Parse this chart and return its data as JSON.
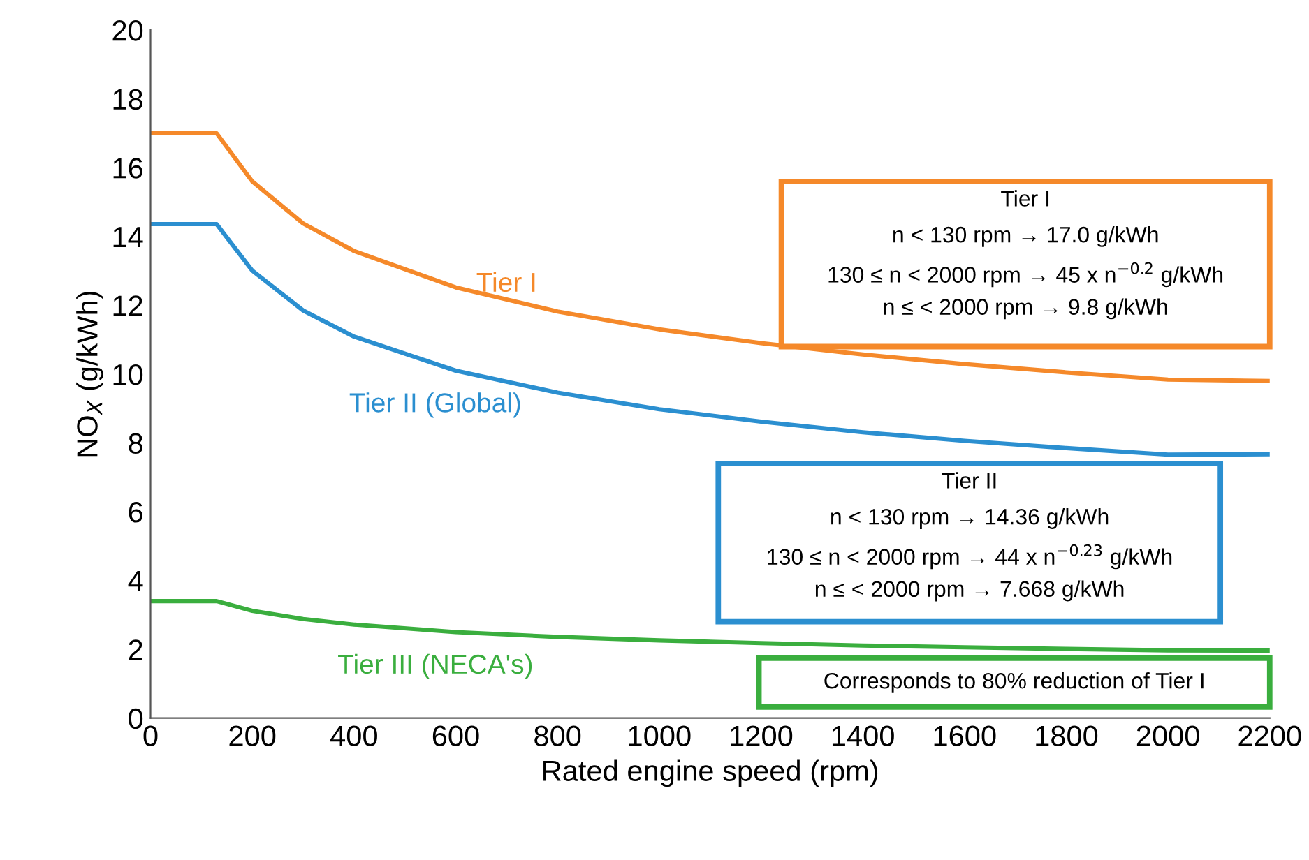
{
  "chart_data": {
    "type": "line",
    "xlabel": "Rated engine speed (rpm)",
    "ylabel": "NO$_{X}$ (g/kWh)",
    "x": [
      0,
      130,
      200,
      300,
      400,
      600,
      800,
      1000,
      1200,
      1400,
      1600,
      1800,
      2000,
      2200
    ],
    "series": [
      {
        "name": "Tier I",
        "color": "#f5892a",
        "values": [
          17.0,
          17.0,
          15.6,
          14.38,
          13.58,
          12.52,
          11.82,
          11.3,
          10.9,
          10.57,
          10.29,
          10.05,
          9.84,
          9.8
        ]
      },
      {
        "name": "Tier II (Global)",
        "color": "#2b8fd0",
        "values": [
          14.36,
          14.36,
          13.01,
          11.85,
          11.09,
          10.1,
          9.46,
          8.98,
          8.62,
          8.31,
          8.06,
          7.85,
          7.66,
          7.67
        ]
      },
      {
        "name": "Tier III (NECA's)",
        "color": "#3aae3e",
        "values": [
          3.4,
          3.4,
          3.12,
          2.88,
          2.72,
          2.5,
          2.36,
          2.26,
          2.18,
          2.11,
          2.06,
          2.01,
          1.97,
          1.96
        ]
      }
    ],
    "annotations": [
      "Tier I",
      "n < 130 rpm → 17.0 g/kWh",
      "130 ≤ n < 2000 rpm → 45 x n$^{−0.2}$ g/kWh",
      "n ≤ < 2000 rpm → 9.8 g/kWh",
      "Tier II",
      "n < 130 rpm → 14.36 g/kWh",
      "130 ≤ n < 2000 rpm → 44 x n$^{−0.23}$ g/kWh",
      "n ≤ < 2000 rpm → 7.668 g/kWh",
      "Corresponds to 80% reduction of Tier I"
    ],
    "xlim": [
      0,
      2200
    ],
    "xticks": [
      0,
      200,
      400,
      600,
      800,
      1000,
      1200,
      1400,
      1600,
      1800,
      2000,
      2200
    ],
    "ylim": [
      0,
      20
    ],
    "yticks": [
      0,
      2,
      4,
      6,
      8,
      10,
      12,
      14,
      16,
      18,
      20
    ],
    "grid": false,
    "legend": false
  }
}
